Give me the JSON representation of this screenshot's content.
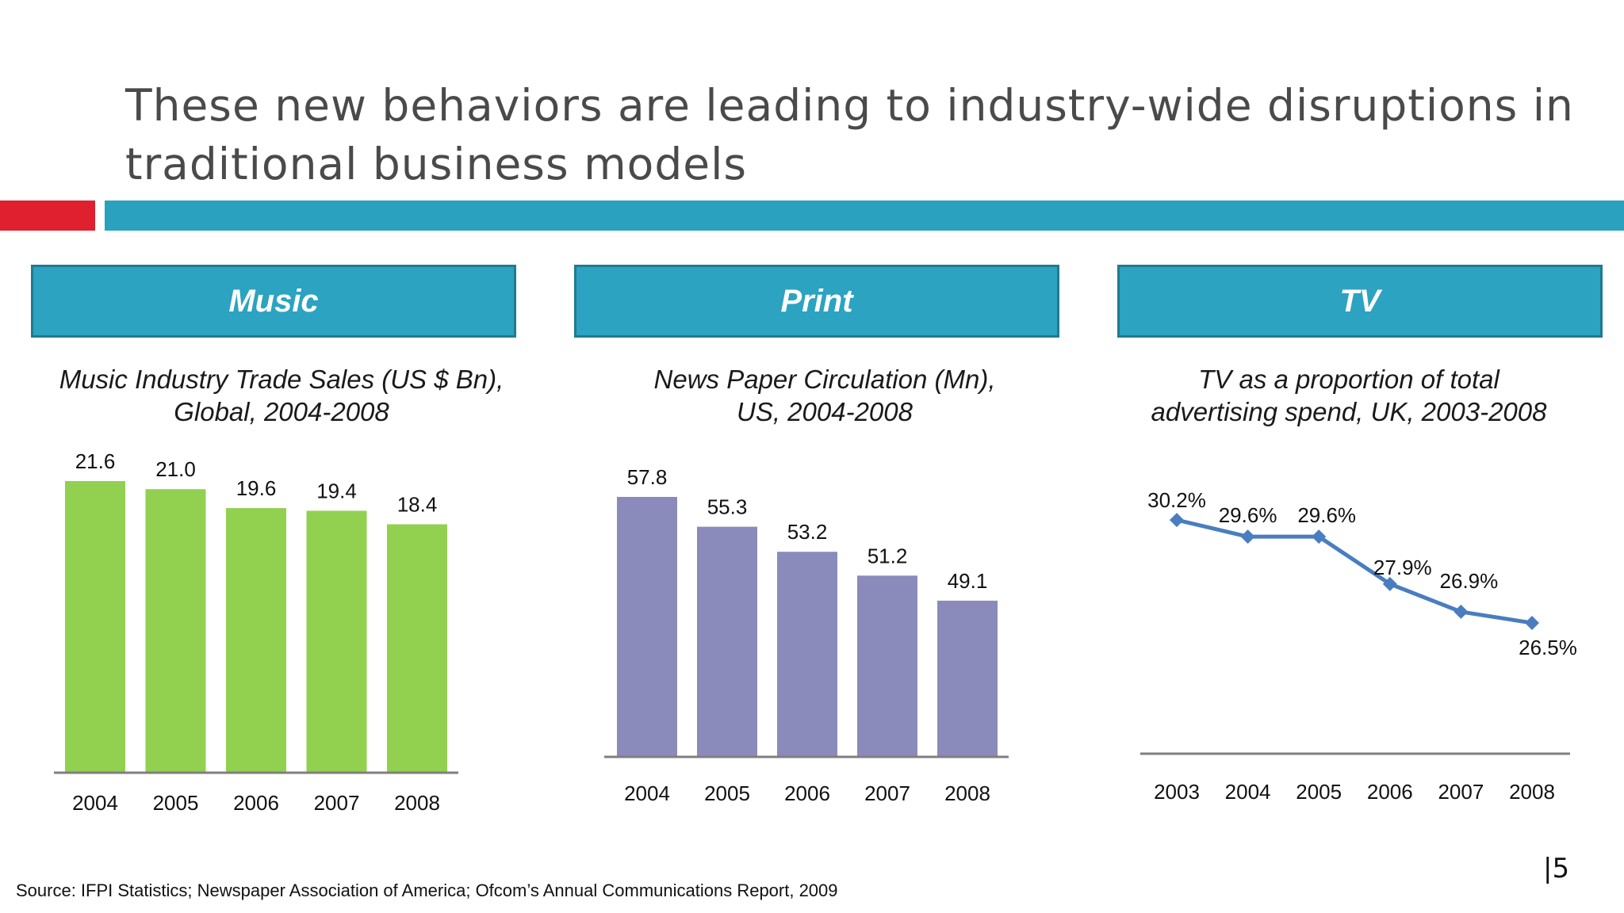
{
  "slide": {
    "title": "These new behaviors are leading to industry-wide disruptions in traditional business models",
    "source": "Source: IFPI Statistics; Newspaper Association of America; Ofcom’s Annual Communications Report, 2009",
    "page_number": "|5"
  },
  "panels": [
    {
      "heading": "Music",
      "subtitle_line1": "Music Industry Trade Sales (US $ Bn),",
      "subtitle_line2": "Global, 2004-2008"
    },
    {
      "heading": "Print",
      "subtitle_line1": "News Paper Circulation (Mn),",
      "subtitle_line2": "US, 2004-2008"
    },
    {
      "heading": "TV",
      "subtitle_line1": "TV as a proportion of total",
      "subtitle_line2": "advertising spend, UK, 2003-2008"
    }
  ],
  "colors": {
    "accent_red": "#e0202e",
    "accent_teal": "#2aa1bf",
    "music_bar": "#92d050",
    "print_bar": "#8a8bbb",
    "tv_line": "#4a7dc0",
    "axis": "#7f7f7f"
  },
  "chart_data": [
    {
      "type": "bar",
      "categories": [
        "2004",
        "2005",
        "2006",
        "2007",
        "2008"
      ],
      "values": [
        21.6,
        21.0,
        19.6,
        19.4,
        18.4
      ],
      "value_labels": [
        "21.6",
        "21.0",
        "19.6",
        "19.4",
        "18.4"
      ],
      "ylim": [
        0,
        21.6
      ]
    },
    {
      "type": "bar",
      "categories": [
        "2004",
        "2005",
        "2006",
        "2007",
        "2008"
      ],
      "values": [
        57.8,
        55.3,
        53.2,
        51.2,
        49.1
      ],
      "value_labels": [
        "57.8",
        "55.3",
        "53.2",
        "51.2",
        "49.1"
      ],
      "ylim": [
        36,
        57.8
      ]
    },
    {
      "type": "line",
      "categories": [
        "2003",
        "2004",
        "2005",
        "2006",
        "2007",
        "2008"
      ],
      "values": [
        30.2,
        29.6,
        29.6,
        27.9,
        26.9,
        26.5
      ],
      "value_labels": [
        "30.2%",
        "29.6%",
        "29.6%",
        "27.9%",
        "26.9%",
        "26.5%"
      ],
      "ylim": [
        21.8,
        30.8
      ]
    }
  ]
}
